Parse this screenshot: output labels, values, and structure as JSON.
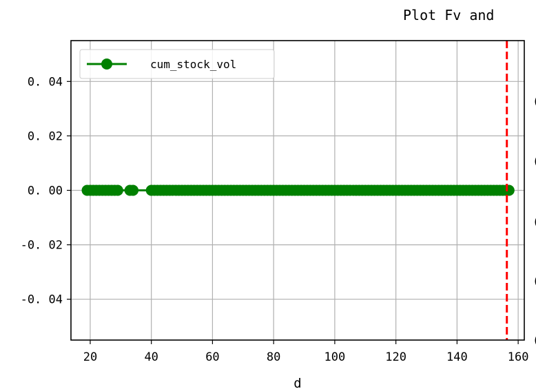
{
  "chart_data": {
    "type": "line",
    "title": "Plot Fv and",
    "xlabel": "d",
    "ylabel": "",
    "xlim": [
      13.7,
      162
    ],
    "ylim": [
      -0.055,
      0.055
    ],
    "x_ticks": [
      20,
      40,
      60,
      80,
      100,
      120,
      140,
      160
    ],
    "x_tick_labels": [
      "20",
      "40",
      "60",
      "80",
      "100",
      "120",
      "140",
      "160"
    ],
    "y_ticks": [
      0.04,
      0.02,
      0.0,
      -0.02,
      -0.04
    ],
    "y_tick_labels": [
      "0. 04",
      "0. 02",
      "0. 00",
      "-0. 02",
      "-0. 04"
    ],
    "grid": true,
    "legend": {
      "placement": "top-left",
      "entries": [
        "cum_stock_vol"
      ]
    },
    "series": [
      {
        "name": "cum_stock_vol",
        "color": "#008000",
        "marker": "circle",
        "x": [
          19,
          20,
          21,
          22,
          23,
          24,
          25,
          26,
          27,
          28,
          29,
          33,
          34,
          40,
          41,
          42,
          43,
          44,
          45,
          46,
          47,
          48,
          49,
          50,
          51,
          52,
          53,
          54,
          55,
          56,
          57,
          58,
          59,
          60,
          61,
          62,
          63,
          64,
          65,
          66,
          67,
          68,
          69,
          70,
          71,
          72,
          73,
          74,
          75,
          76,
          77,
          78,
          79,
          80,
          81,
          82,
          83,
          84,
          85,
          86,
          87,
          88,
          89,
          90,
          91,
          92,
          93,
          94,
          95,
          96,
          97,
          98,
          99,
          100,
          101,
          102,
          103,
          104,
          105,
          106,
          107,
          108,
          109,
          110,
          111,
          112,
          113,
          114,
          115,
          116,
          117,
          118,
          119,
          120,
          121,
          122,
          123,
          124,
          125,
          126,
          127,
          128,
          129,
          130,
          131,
          132,
          133,
          134,
          135,
          136,
          137,
          138,
          139,
          140,
          141,
          142,
          143,
          144,
          145,
          146,
          147,
          148,
          149,
          150,
          151,
          152,
          153,
          154,
          155,
          156,
          157
        ],
        "y": [
          0,
          0,
          0,
          0,
          0,
          0,
          0,
          0,
          0,
          0,
          0,
          0,
          0,
          0,
          0,
          0,
          0,
          0,
          0,
          0,
          0,
          0,
          0,
          0,
          0,
          0,
          0,
          0,
          0,
          0,
          0,
          0,
          0,
          0,
          0,
          0,
          0,
          0,
          0,
          0,
          0,
          0,
          0,
          0,
          0,
          0,
          0,
          0,
          0,
          0,
          0,
          0,
          0,
          0,
          0,
          0,
          0,
          0,
          0,
          0,
          0,
          0,
          0,
          0,
          0,
          0,
          0,
          0,
          0,
          0,
          0,
          0,
          0,
          0,
          0,
          0,
          0,
          0,
          0,
          0,
          0,
          0,
          0,
          0,
          0,
          0,
          0,
          0,
          0,
          0,
          0,
          0,
          0,
          0,
          0,
          0,
          0,
          0,
          0,
          0,
          0,
          0,
          0,
          0,
          0,
          0,
          0,
          0,
          0,
          0,
          0,
          0,
          0,
          0,
          0,
          0,
          0,
          0,
          0,
          0,
          0,
          0,
          0,
          0,
          0,
          0,
          0,
          0,
          0,
          0,
          0
        ]
      }
    ],
    "vertical_lines": [
      {
        "x": 156.3,
        "color": "#ff0000",
        "style": "dashed"
      }
    ],
    "right_axis_partial_labels": [
      "(",
      "(",
      "(",
      "(",
      "("
    ]
  }
}
